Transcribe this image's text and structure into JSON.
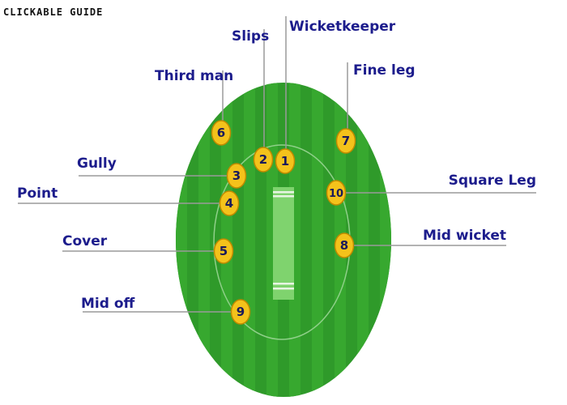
{
  "header": {
    "title": "CLICKABLE GUIDE"
  },
  "colors": {
    "field_outer": "#2f9a2a",
    "field_stripe": "#37a82f",
    "field_inner_ring": "#8fd089",
    "pitch": "#7fd36e",
    "crease": "#e7f5e2",
    "marker_fill": "#f4c21b",
    "marker_stroke": "#c08a00",
    "marker_text": "#1a1a5a",
    "label_text": "#1c1c8c",
    "leader_line": "#9a9a9a"
  },
  "positions": [
    {
      "number": "1",
      "name": "Wicketkeeper"
    },
    {
      "number": "2",
      "name": "Slips"
    },
    {
      "number": "3",
      "name": "Gully"
    },
    {
      "number": "4",
      "name": "Point"
    },
    {
      "number": "5",
      "name": "Cover"
    },
    {
      "number": "6",
      "name": "Third man"
    },
    {
      "number": "7",
      "name": "Fine leg"
    },
    {
      "number": "8",
      "name": "Mid wicket"
    },
    {
      "number": "9",
      "name": "Mid off"
    },
    {
      "number": "10",
      "name": "Square Leg"
    }
  ]
}
